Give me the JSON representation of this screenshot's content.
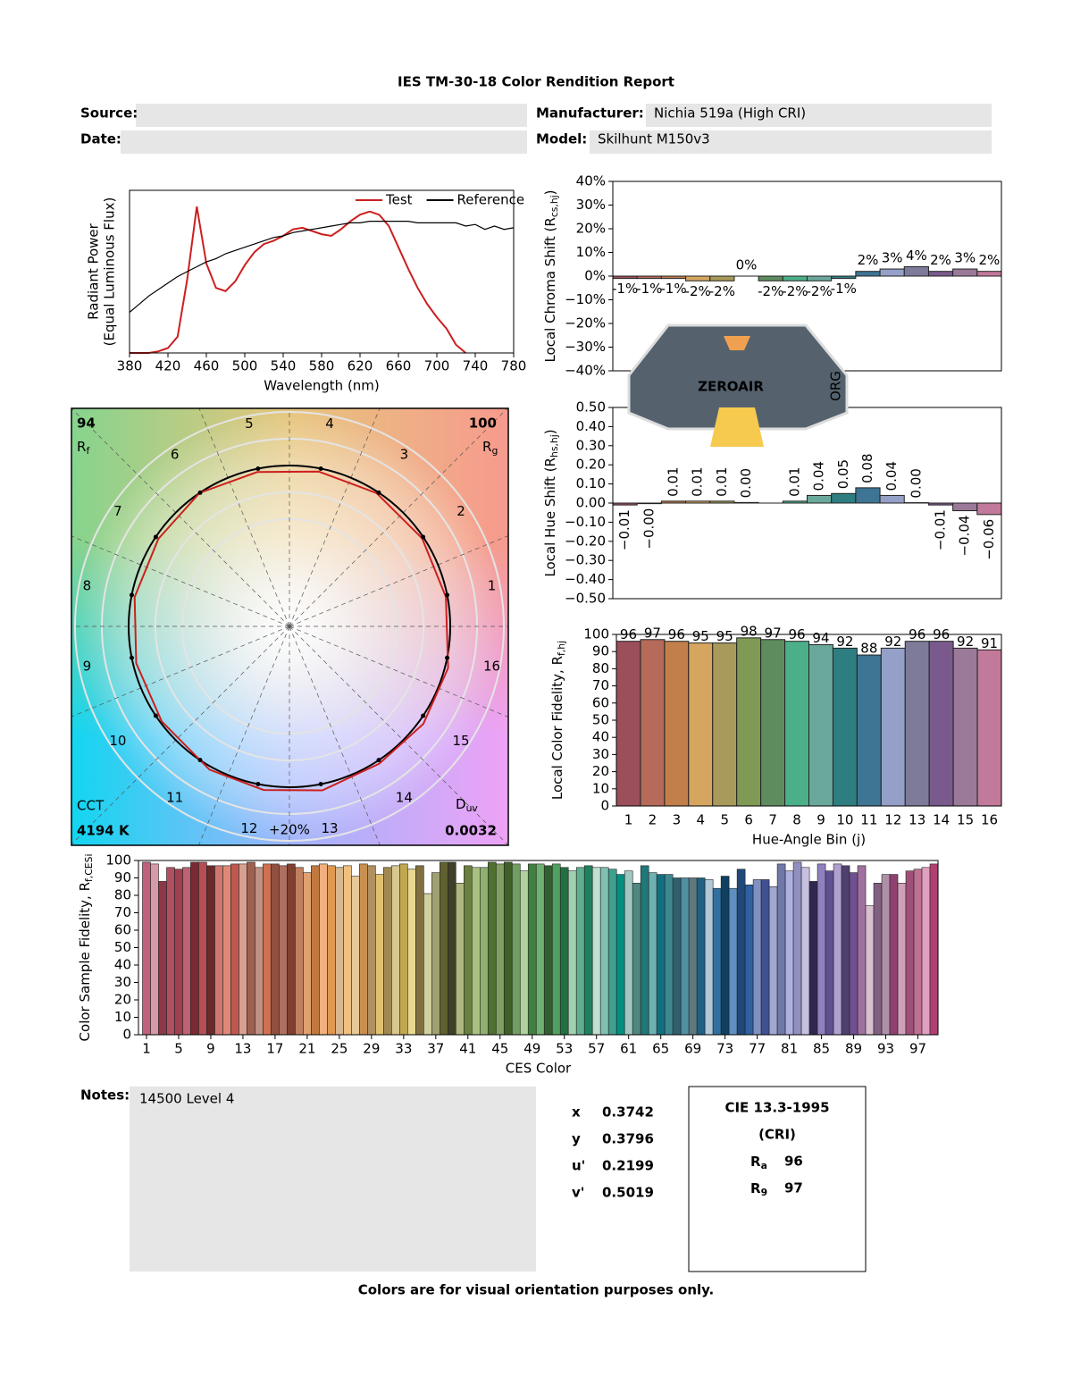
{
  "header": {
    "title": "IES TM-30-18 Color Rendition Report",
    "fields": [
      {
        "label": "Source:"
      },
      {
        "label": "Date:"
      },
      {
        "label": "Manufacturer:",
        "value": "Nichia 519a (High CRI)"
      },
      {
        "label": "Model:",
        "value": "Skilhunt M150v3"
      }
    ]
  },
  "watermark": {
    "text": "ZEROAIR",
    "suffix": "ORG"
  },
  "chart_data": [
    {
      "type": "line",
      "xlabel": "Wavelength (nm)",
      "ylabel": "Radiant Power",
      "ylabel2": "(Equal Luminous Flux)",
      "legend": "upper right",
      "x": [
        380,
        390,
        400,
        410,
        420,
        430,
        440,
        450,
        460,
        470,
        480,
        490,
        500,
        510,
        520,
        530,
        540,
        550,
        560,
        570,
        580,
        590,
        600,
        610,
        620,
        630,
        640,
        650,
        660,
        670,
        680,
        690,
        700,
        710,
        720,
        730,
        740,
        750,
        760,
        770,
        780
      ],
      "xlim": [
        380,
        780
      ],
      "xticks": [
        380,
        420,
        460,
        500,
        540,
        580,
        620,
        660,
        700,
        740,
        780
      ],
      "ylim": [
        0,
        1
      ],
      "series": [
        {
          "name": "Test",
          "color": "#cc1f1f",
          "values": [
            0,
            0,
            0,
            0.01,
            0.03,
            0.1,
            0.45,
            0.9,
            0.55,
            0.4,
            0.38,
            0.44,
            0.54,
            0.62,
            0.67,
            0.69,
            0.72,
            0.76,
            0.77,
            0.75,
            0.73,
            0.72,
            0.76,
            0.81,
            0.85,
            0.87,
            0.85,
            0.78,
            0.65,
            0.52,
            0.4,
            0.3,
            0.22,
            0.15,
            0.05,
            0,
            null,
            null,
            null,
            null,
            null
          ]
        },
        {
          "name": "Reference",
          "color": "#000000",
          "values": [
            0.25,
            0.3,
            0.35,
            0.39,
            0.43,
            0.47,
            0.5,
            0.53,
            0.56,
            0.58,
            0.61,
            0.63,
            0.65,
            0.67,
            0.69,
            0.71,
            0.72,
            0.74,
            0.75,
            0.76,
            0.77,
            0.78,
            0.79,
            0.8,
            0.8,
            0.81,
            0.81,
            0.81,
            0.81,
            0.81,
            0.8,
            0.8,
            0.8,
            0.8,
            0.8,
            0.78,
            0.79,
            0.76,
            0.78,
            0.76,
            0.77
          ]
        }
      ]
    },
    {
      "type": "vector",
      "bins": [
        1,
        2,
        3,
        4,
        5,
        6,
        7,
        8,
        9,
        10,
        11,
        12,
        13,
        14,
        15,
        16
      ],
      "rf": 94,
      "rf_label": {
        "text": "R",
        "sub": "f"
      },
      "rg": 100,
      "rg_label": {
        "text": "R",
        "sub": "g"
      },
      "cct_title": "CCT",
      "cct": "4194 K",
      "duv_label": {
        "text": "D",
        "sub": "uv"
      },
      "duv": 0.0032,
      "scale_label": "+20%",
      "test_color": "#cc1f1f",
      "reference_color": "#000000"
    },
    {
      "type": "bar",
      "ylabel": {
        "text": "Local Chroma Shift (R",
        "sub": "cs,hj",
        "after": ")"
      },
      "values": [
        -1,
        -1,
        -1,
        -2,
        -2,
        0,
        -2,
        -2,
        -2,
        -1,
        2,
        3,
        4,
        2,
        3,
        2
      ],
      "value_labels": [
        "-1%",
        "-1%",
        "-1%",
        "-2%",
        "-2%",
        "0%",
        "-2%",
        "-2%",
        "-2%",
        "-1%",
        "2%",
        "3%",
        "4%",
        "2%",
        "3%",
        "2%"
      ],
      "colors": [
        "#9b4f5a",
        "#b56a5a",
        "#c27e4b",
        "#d6a660",
        "#a89a5a",
        "#7f9a55",
        "#5f8c5f",
        "#4bb08a",
        "#6aa89b",
        "#2e7d80",
        "#3e7494",
        "#94a0c8",
        "#7d7a9a",
        "#7a5a8c",
        "#9a7a98",
        "#c27a9a"
      ],
      "ylim": [
        -40,
        40
      ],
      "yticks": [
        {
          "value": 40,
          "label": "40%"
        },
        {
          "value": 30,
          "label": "30%"
        },
        {
          "value": 20,
          "label": "20%"
        },
        {
          "value": 10,
          "label": "10%"
        },
        {
          "value": 0,
          "label": "0%"
        },
        {
          "value": -10,
          "label": "−10%"
        },
        {
          "value": -20,
          "label": "−20%"
        },
        {
          "value": -30,
          "label": "−30%"
        },
        {
          "value": -40,
          "label": "−40%"
        }
      ]
    },
    {
      "type": "bar",
      "ylabel": {
        "text": "Local Hue Shift (R",
        "sub": "hs,hj",
        "after": ")"
      },
      "values": [
        -0.01,
        -0.003,
        0.01,
        0.01,
        0.01,
        0.003,
        0,
        0.01,
        0.04,
        0.05,
        0.08,
        0.04,
        0.002,
        -0.01,
        -0.04,
        -0.06
      ],
      "value_labels": [
        "−0.01",
        "−0.00",
        "0.01",
        "0.01",
        "0.01",
        "0.00",
        null,
        "0.01",
        "0.04",
        "0.05",
        "0.08",
        "0.04",
        "0.00",
        "−0.01",
        "−0.04",
        "−0.06"
      ],
      "colors": [
        "#9b4f5a",
        "#b56a5a",
        "#c27e4b",
        "#d6a660",
        "#a89a5a",
        "#7f9a55",
        "#5f8c5f",
        "#4bb08a",
        "#6aa89b",
        "#2e7d80",
        "#3e7494",
        "#94a0c8",
        "#7d7a9a",
        "#7a5a8c",
        "#9a7a98",
        "#c27a9a"
      ],
      "ylim": [
        -0.5,
        0.5
      ],
      "yticks": [
        {
          "value": 0.5,
          "label": "0.50"
        },
        {
          "value": 0.4,
          "label": "0.40"
        },
        {
          "value": 0.3,
          "label": "0.30"
        },
        {
          "value": 0.2,
          "label": "0.20"
        },
        {
          "value": 0.1,
          "label": "0.10"
        },
        {
          "value": 0,
          "label": "0.00"
        },
        {
          "value": -0.1,
          "label": "−0.10"
        },
        {
          "value": -0.2,
          "label": "−0.20"
        },
        {
          "value": -0.3,
          "label": "−0.30"
        },
        {
          "value": -0.4,
          "label": "−0.40"
        },
        {
          "value": -0.5,
          "label": "−0.50"
        }
      ]
    },
    {
      "type": "bar",
      "xlabel": "Hue-Angle Bin (j)",
      "ylabel": {
        "text": "Local Color Fidelity, R",
        "sub": "f,hj"
      },
      "categories": [
        1,
        2,
        3,
        4,
        5,
        6,
        7,
        8,
        9,
        10,
        11,
        12,
        13,
        14,
        15,
        16
      ],
      "values": [
        96,
        97,
        96,
        95,
        95,
        98,
        97,
        96,
        94,
        92,
        88,
        92,
        96,
        96,
        92,
        91
      ],
      "colors": [
        "#9b4f5a",
        "#b56a5a",
        "#c27e4b",
        "#d6a660",
        "#a89a5a",
        "#7f9a55",
        "#5f8c5f",
        "#4bb08a",
        "#6aa89b",
        "#2e7d80",
        "#3e7494",
        "#94a0c8",
        "#7d7a9a",
        "#7a5a8c",
        "#9a7a98",
        "#c27a9a"
      ],
      "ylim": [
        0,
        100
      ],
      "yticks": [
        0,
        10,
        20,
        30,
        40,
        50,
        60,
        70,
        80,
        90,
        100
      ]
    },
    {
      "type": "bar",
      "xlabel": "CES Color",
      "ylabel": {
        "text": "Color Sample Fidelity, R",
        "sub": "f,CESi"
      },
      "x": [
        1,
        2,
        3,
        4,
        5,
        6,
        7,
        8,
        9,
        10,
        11,
        12,
        13,
        14,
        15,
        16,
        17,
        18,
        19,
        20,
        21,
        22,
        23,
        24,
        25,
        26,
        27,
        28,
        29,
        30,
        31,
        32,
        33,
        34,
        35,
        36,
        37,
        38,
        39,
        40,
        41,
        42,
        43,
        44,
        45,
        46,
        47,
        48,
        49,
        50,
        51,
        52,
        53,
        54,
        55,
        56,
        57,
        58,
        59,
        60,
        61,
        62,
        63,
        64,
        65,
        66,
        67,
        68,
        69,
        70,
        71,
        72,
        73,
        74,
        75,
        76,
        77,
        78,
        79,
        80,
        81,
        82,
        83,
        84,
        85,
        86,
        87,
        88,
        89,
        90,
        91,
        92,
        93,
        94,
        95,
        96,
        97,
        98,
        99
      ],
      "values": [
        99,
        98,
        88,
        96,
        95,
        96,
        99,
        99,
        97,
        97,
        97,
        98,
        98,
        99,
        96,
        98,
        98,
        97,
        98,
        96,
        93,
        97,
        98,
        97,
        96,
        97,
        91,
        98,
        97,
        92,
        96,
        97,
        98,
        95,
        97,
        81,
        93,
        99,
        99,
        87,
        97,
        96,
        96,
        99,
        98,
        99,
        98,
        94,
        98,
        98,
        97,
        98,
        96,
        94,
        96,
        97,
        96,
        96,
        95,
        92,
        94,
        87,
        97,
        93,
        92,
        92,
        90,
        90,
        90,
        90,
        89,
        84,
        91,
        84,
        95,
        86,
        89,
        89,
        85,
        98,
        94,
        99,
        96,
        88,
        98,
        94,
        98,
        97,
        93,
        97,
        74,
        87,
        92,
        92,
        87,
        94,
        95,
        96,
        98
      ],
      "colors": [
        "#c0607a",
        "#d89aa8",
        "#8c3848",
        "#b05060",
        "#a04050",
        "#c06070",
        "#7a2a34",
        "#b84e55",
        "#6a2a2a",
        "#d07870",
        "#e08878",
        "#c05850",
        "#d8a090",
        "#a06050",
        "#c09080",
        "#d07050",
        "#905040",
        "#b07060",
        "#804030",
        "#c08060",
        "#e0a070",
        "#c07840",
        "#f0b080",
        "#e09850",
        "#d8b890",
        "#f0c080",
        "#e8c898",
        "#c89050",
        "#b09060",
        "#e0c070",
        "#a08850",
        "#d8c890",
        "#c0a850",
        "#e8d890",
        "#807040",
        "#d0d0a0",
        "#a0a070",
        "#606030",
        "#404028",
        "#b0b880",
        "#6a8040",
        "#a8c080",
        "#90b070",
        "#507030",
        "#80a060",
        "#406028",
        "#70a060",
        "#b0d0a0",
        "#408040",
        "#70b070",
        "#306030",
        "#50a060",
        "#207040",
        "#a0d0b0",
        "#60b090",
        "#208060",
        "#c0e0d0",
        "#80c0b0",
        "#40a090",
        "#009080",
        "#a0c8c0",
        "#508880",
        "#207878",
        "#70b0b0",
        "#107080",
        "#408890",
        "#306070",
        "#5090a0",
        "#607880",
        "#206080",
        "#b0c8d8",
        "#3070a0",
        "#104060",
        "#6090c0",
        "#204878",
        "#3060a0",
        "#8090c0",
        "#405090",
        "#a0a8d0",
        "#7078a8",
        "#b0b0e0",
        "#9090c0",
        "#c8c0e0",
        "#302850",
        "#9080c0",
        "#605090",
        "#b0a0d0",
        "#504070",
        "#705090",
        "#a070a0",
        "#d8c0d0",
        "#806080",
        "#b090a8",
        "#904070",
        "#d0a0b8",
        "#a05078",
        "#c07090",
        "#e0a0c0",
        "#b04070"
      ],
      "xlim": [
        0,
        99.5
      ],
      "xticks": [
        1,
        5,
        9,
        13,
        17,
        21,
        25,
        29,
        33,
        37,
        41,
        45,
        49,
        53,
        57,
        61,
        65,
        69,
        73,
        77,
        81,
        85,
        89,
        93,
        97
      ],
      "ylim": [
        0,
        100
      ],
      "yticks": [
        0,
        10,
        20,
        30,
        40,
        50,
        60,
        70,
        80,
        90,
        100
      ]
    }
  ],
  "notes": {
    "label": "Notes:",
    "text": "14500 Level 4"
  },
  "chromaticity": [
    {
      "label": "x",
      "value": 0.3742
    },
    {
      "label": "y",
      "value": 0.3796
    },
    {
      "label": "u'",
      "value": 0.2199
    },
    {
      "label": "v'",
      "value": 0.5019
    }
  ],
  "cri": {
    "title": "CIE 13.3-1995",
    "subtitle": "(CRI)",
    "items": [
      {
        "symbol": "R",
        "sub": "a",
        "value": 96
      },
      {
        "symbol": "R",
        "sub": "9",
        "value": 97
      }
    ]
  },
  "footer": "Colors are for visual orientation purposes only."
}
